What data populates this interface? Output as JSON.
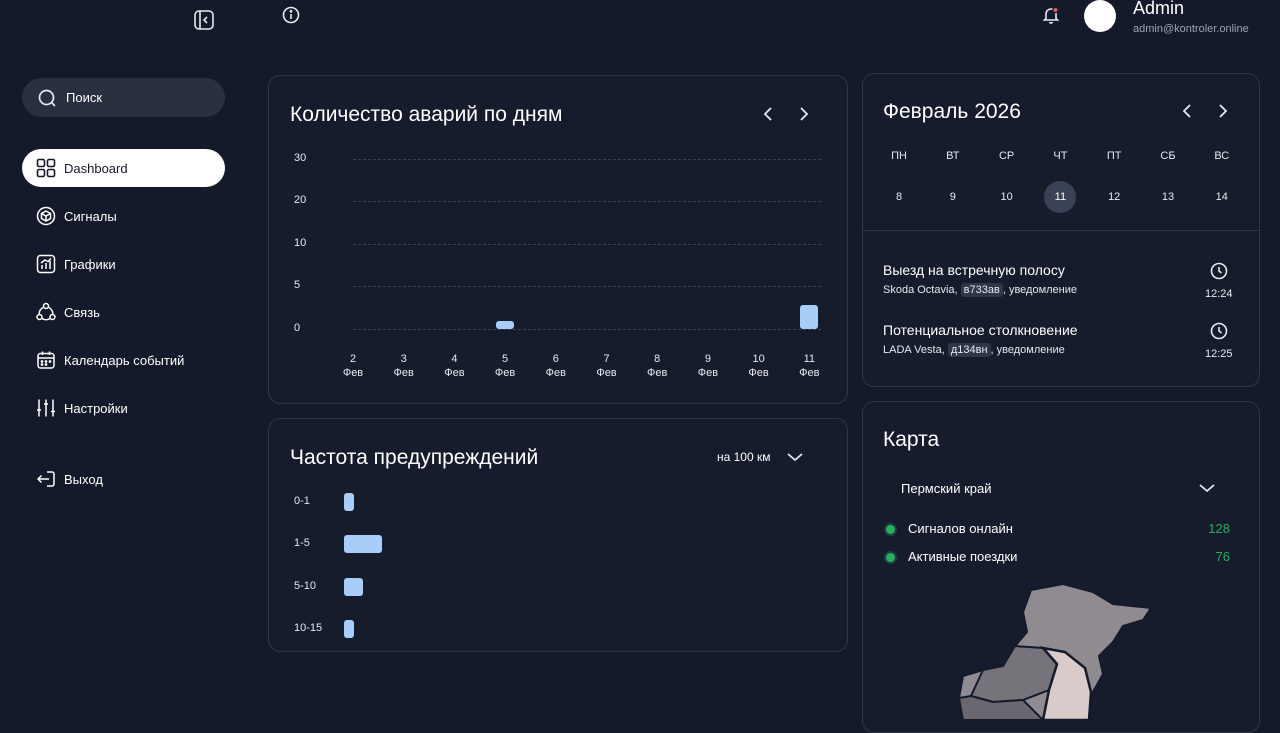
{
  "user": {
    "name": "Admin",
    "email": "admin@kontroler.online"
  },
  "search": {
    "placeholder": "Поиск"
  },
  "nav": {
    "dashboard": "Dashboard",
    "signals": "Сигналы",
    "charts": "Графики",
    "connection": "Связь",
    "calendar": "Календарь событий",
    "settings": "Настройки",
    "logout": "Выход"
  },
  "accidents_card": {
    "title": "Количество аварий по дням"
  },
  "warnings_card": {
    "title": "Частота предупреждений",
    "unit_select": "на 100 км"
  },
  "chart_data": [
    {
      "type": "bar",
      "title": "Количество аварий по дням",
      "y_ticks": [
        "30",
        "20",
        "10",
        "5",
        "0"
      ],
      "categories": [
        "2",
        "3",
        "4",
        "5",
        "6",
        "7",
        "8",
        "9",
        "10",
        "11"
      ],
      "category_sub": "Фев",
      "values": [
        0,
        0,
        0,
        1,
        0,
        0,
        0,
        0,
        0,
        3
      ],
      "grid": true
    },
    {
      "type": "bar",
      "orientation": "horizontal",
      "title": "Частота предупреждений",
      "categories": [
        "0-1",
        "1-5",
        "5-10",
        "10-15"
      ],
      "values": [
        1,
        4,
        2,
        1
      ]
    }
  ],
  "calendar": {
    "title": "Февраль 2026",
    "weekdays": [
      "ПН",
      "ВТ",
      "СР",
      "ЧТ",
      "ПТ",
      "СБ",
      "ВС"
    ],
    "days": [
      "8",
      "9",
      "10",
      "11",
      "12",
      "13",
      "14"
    ],
    "selected_day": "11"
  },
  "events": [
    {
      "title": "Выезд на встречную полосу",
      "car": "Skoda Octavia, ",
      "plate": "в733ав",
      "note": ", уведомление",
      "time": "12:24"
    },
    {
      "title": "Потенциальное столкновение",
      "car": "LADA Vesta, ",
      "plate": "д134вн",
      "note": ", уведомление",
      "time": "12:25"
    }
  ],
  "map_card": {
    "title": "Карта",
    "region": "Пермский край",
    "stats": [
      {
        "label": "Сигналов онлайн",
        "value": "128"
      },
      {
        "label": "Активные поездки",
        "value": "76"
      }
    ]
  },
  "colors": {
    "background": "#141a29",
    "bar": "#a9cdf9",
    "accent_green": "#27ae60",
    "card_border": "#2f3648"
  }
}
